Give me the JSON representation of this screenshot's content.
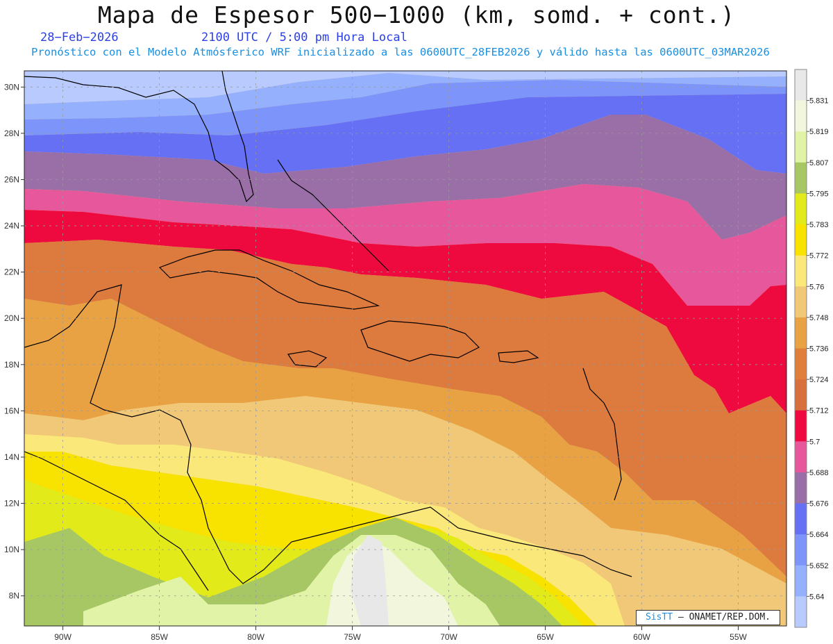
{
  "header": {
    "title": "Mapa de Espesor 500−1000 (km, somd. + cont.)",
    "date": "28−Feb−2026",
    "time": "2100 UTC / 5:00 pm Hora Local",
    "subtitle": "Pronóstico con el Modelo Atmósferico WRF inicializado a las 0600UTC_28FEB2026 y válido hasta las  0600UTC_03MAR2026"
  },
  "map": {
    "lon_ticks": [
      "90W",
      "85W",
      "80W",
      "75W",
      "70W",
      "65W",
      "60W",
      "55W"
    ],
    "lat_ticks": [
      "30N",
      "28N",
      "26N",
      "24N",
      "22N",
      "20N",
      "18N",
      "16N",
      "14N",
      "12N",
      "10N",
      "8N"
    ],
    "lon_range": [
      -92,
      -52.5
    ],
    "lat_range": [
      6.7,
      30.7
    ]
  },
  "colorbar": {
    "labels": [
      "5.831",
      "5.819",
      "5.807",
      "5.795",
      "5.783",
      "5.772",
      "5.76",
      "5.748",
      "5.736",
      "5.724",
      "5.712",
      "5.7",
      "5.688",
      "5.676",
      "5.664",
      "5.652",
      "5.64"
    ],
    "colors": [
      "#e8e8e8",
      "#f1f6dc",
      "#e0f3a6",
      "#a7c764",
      "#e2ea1a",
      "#f8e200",
      "#fbe87a",
      "#f1c878",
      "#e8a244",
      "#e07e3c",
      "#d8703e",
      "#ee0a3e",
      "#e6579c",
      "#9a6ea6",
      "#6570f5",
      "#7d94fa",
      "#95b0fc",
      "#b9caff"
    ]
  },
  "credit": {
    "brand": "SisTT",
    "text": "– ONAMET/REP.DOM."
  }
}
